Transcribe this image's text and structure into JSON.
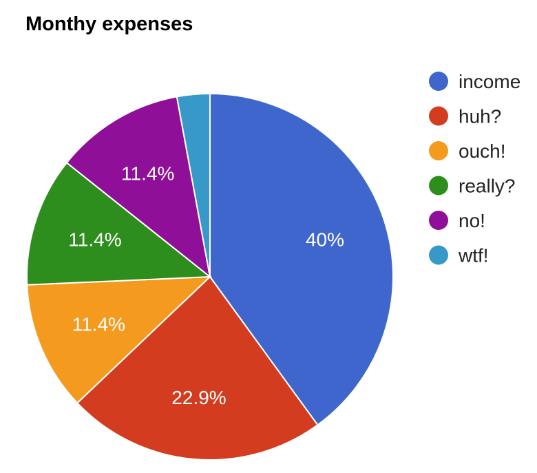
{
  "chart_data": {
    "type": "pie",
    "title": "Monthy expenses",
    "legend_position": "right",
    "start_angle": "12 o'clock",
    "direction": "clockwise",
    "slices": [
      {
        "label": "income",
        "value": 40.0,
        "display": "40%",
        "color": "#3f66cd"
      },
      {
        "label": "huh?",
        "value": 22.9,
        "display": "22.9%",
        "color": "#d43c1f"
      },
      {
        "label": "ouch!",
        "value": 11.4,
        "display": "11.4%",
        "color": "#f49b1f"
      },
      {
        "label": "really?",
        "value": 11.4,
        "display": "11.4%",
        "color": "#2e8e1d"
      },
      {
        "label": "no!",
        "value": 11.4,
        "display": "11.4%",
        "color": "#8f0f98"
      },
      {
        "label": "wtf!",
        "value": 2.9,
        "display": "",
        "color": "#3799c8"
      }
    ]
  }
}
